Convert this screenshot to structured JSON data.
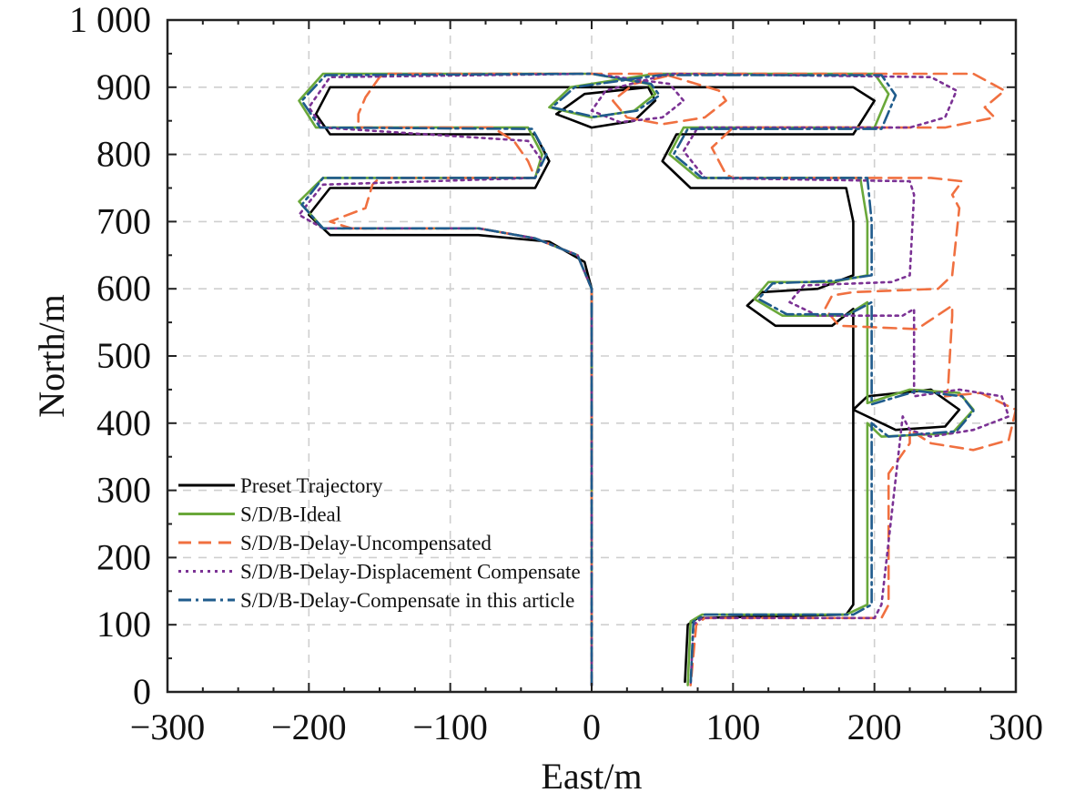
{
  "chart_data": {
    "type": "line",
    "title": "",
    "xlabel": "East/m",
    "ylabel": "North/m",
    "xlim": [
      -300,
      300
    ],
    "ylim": [
      0,
      1000
    ],
    "xticks": [
      -300,
      -200,
      -100,
      0,
      100,
      200,
      300
    ],
    "yticks": [
      0,
      100,
      200,
      300,
      400,
      500,
      600,
      700,
      800,
      900,
      1000
    ],
    "xtick_labels": [
      "−300",
      "−200",
      "−100",
      "0",
      "100",
      "200",
      "300"
    ],
    "ytick_labels": [
      "0",
      "100",
      "200",
      "300",
      "400",
      "500",
      "600",
      "700",
      "800",
      "900",
      "1 000"
    ],
    "grid": true,
    "legend_position": "lower-left",
    "series": [
      {
        "name": "Preset Trajectory",
        "color": "#000000",
        "style": "solid",
        "points": [
          [
            0,
            340
          ],
          [
            0,
            600
          ],
          [
            -5,
            640
          ],
          [
            -30,
            670
          ],
          [
            -80,
            680
          ],
          [
            -185,
            680
          ],
          [
            -200,
            710
          ],
          [
            -185,
            750
          ],
          [
            -40,
            750
          ],
          [
            -30,
            790
          ],
          [
            -40,
            830
          ],
          [
            -185,
            830
          ],
          [
            -195,
            860
          ],
          [
            -185,
            900
          ],
          [
            0,
            900
          ],
          [
            40,
            900
          ],
          [
            45,
            880
          ],
          [
            30,
            850
          ],
          [
            0,
            840
          ],
          [
            -25,
            860
          ],
          [
            -5,
            890
          ],
          [
            40,
            900
          ],
          [
            185,
            900
          ],
          [
            200,
            880
          ],
          [
            185,
            830
          ],
          [
            60,
            830
          ],
          [
            50,
            790
          ],
          [
            70,
            750
          ],
          [
            180,
            750
          ],
          [
            185,
            700
          ],
          [
            185,
            620
          ],
          [
            160,
            600
          ],
          [
            120,
            595
          ],
          [
            110,
            575
          ],
          [
            130,
            545
          ],
          [
            170,
            545
          ],
          [
            185,
            570
          ],
          [
            185,
            560
          ],
          [
            185,
            470
          ],
          [
            185,
            420
          ],
          [
            215,
            390
          ],
          [
            250,
            395
          ],
          [
            260,
            420
          ],
          [
            240,
            450
          ],
          [
            195,
            440
          ],
          [
            185,
            420
          ],
          [
            185,
            130
          ],
          [
            180,
            115
          ],
          [
            75,
            110
          ],
          [
            68,
            100
          ],
          [
            66,
            15
          ]
        ]
      },
      {
        "name": "S/D/B-Ideal",
        "color": "#6aa83a",
        "style": "solid",
        "points": [
          [
            0,
            10
          ],
          [
            0,
            600
          ],
          [
            -10,
            650
          ],
          [
            -40,
            675
          ],
          [
            -80,
            690
          ],
          [
            -190,
            690
          ],
          [
            -207,
            730
          ],
          [
            -190,
            765
          ],
          [
            -40,
            765
          ],
          [
            -35,
            800
          ],
          [
            -45,
            840
          ],
          [
            -195,
            840
          ],
          [
            -207,
            880
          ],
          [
            -190,
            920
          ],
          [
            0,
            920
          ],
          [
            40,
            905
          ],
          [
            45,
            890
          ],
          [
            30,
            865
          ],
          [
            0,
            855
          ],
          [
            -30,
            870
          ],
          [
            -15,
            900
          ],
          [
            45,
            920
          ],
          [
            200,
            920
          ],
          [
            210,
            890
          ],
          [
            200,
            840
          ],
          [
            65,
            840
          ],
          [
            55,
            800
          ],
          [
            75,
            765
          ],
          [
            190,
            765
          ],
          [
            195,
            700
          ],
          [
            195,
            620
          ],
          [
            170,
            610
          ],
          [
            125,
            610
          ],
          [
            115,
            585
          ],
          [
            135,
            560
          ],
          [
            180,
            560
          ],
          [
            195,
            580
          ],
          [
            195,
            540
          ],
          [
            195,
            460
          ],
          [
            195,
            430
          ],
          [
            225,
            450
          ],
          [
            260,
            445
          ],
          [
            270,
            420
          ],
          [
            255,
            385
          ],
          [
            205,
            380
          ],
          [
            195,
            400
          ],
          [
            195,
            130
          ],
          [
            180,
            115
          ],
          [
            78,
            115
          ],
          [
            70,
            105
          ],
          [
            68,
            10
          ]
        ]
      },
      {
        "name": "S/D/B-Delay-Uncompensated",
        "color": "#f07040",
        "style": "dashed",
        "points": [
          [
            0,
            10
          ],
          [
            0,
            600
          ],
          [
            -10,
            650
          ],
          [
            -40,
            675
          ],
          [
            -80,
            690
          ],
          [
            -170,
            690
          ],
          [
            -185,
            700
          ],
          [
            -160,
            720
          ],
          [
            -155,
            755
          ],
          [
            -150,
            765
          ],
          [
            -40,
            765
          ],
          [
            -45,
            790
          ],
          [
            -55,
            820
          ],
          [
            -70,
            840
          ],
          [
            -165,
            840
          ],
          [
            -165,
            860
          ],
          [
            -160,
            885
          ],
          [
            -150,
            915
          ],
          [
            -145,
            920
          ],
          [
            50,
            920
          ],
          [
            90,
            895
          ],
          [
            95,
            880
          ],
          [
            80,
            855
          ],
          [
            50,
            845
          ],
          [
            25,
            855
          ],
          [
            15,
            880
          ],
          [
            30,
            905
          ],
          [
            60,
            920
          ],
          [
            270,
            920
          ],
          [
            292,
            895
          ],
          [
            278,
            870
          ],
          [
            285,
            855
          ],
          [
            250,
            840
          ],
          [
            100,
            840
          ],
          [
            85,
            810
          ],
          [
            95,
            770
          ],
          [
            100,
            765
          ],
          [
            240,
            765
          ],
          [
            262,
            760
          ],
          [
            255,
            740
          ],
          [
            260,
            720
          ],
          [
            255,
            620
          ],
          [
            245,
            600
          ],
          [
            185,
            595
          ],
          [
            170,
            590
          ],
          [
            165,
            570
          ],
          [
            175,
            545
          ],
          [
            230,
            540
          ],
          [
            255,
            575
          ],
          [
            255,
            560
          ],
          [
            252,
            450
          ],
          [
            250,
            440
          ],
          [
            275,
            445
          ],
          [
            300,
            420
          ],
          [
            295,
            375
          ],
          [
            270,
            360
          ],
          [
            240,
            370
          ],
          [
            225,
            390
          ],
          [
            225,
            370
          ],
          [
            210,
            325
          ],
          [
            210,
            130
          ],
          [
            205,
            110
          ],
          [
            80,
            110
          ],
          [
            74,
            100
          ],
          [
            70,
            10
          ]
        ]
      },
      {
        "name": "S/D/B-Delay-Displacement Compensate",
        "color": "#7b3294",
        "style": "dotted",
        "points": [
          [
            0,
            10
          ],
          [
            0,
            600
          ],
          [
            -10,
            650
          ],
          [
            -40,
            675
          ],
          [
            -80,
            690
          ],
          [
            -190,
            690
          ],
          [
            -207,
            710
          ],
          [
            -190,
            755
          ],
          [
            -40,
            765
          ],
          [
            -35,
            790
          ],
          [
            -45,
            820
          ],
          [
            -190,
            840
          ],
          [
            -200,
            870
          ],
          [
            -185,
            915
          ],
          [
            0,
            920
          ],
          [
            55,
            905
          ],
          [
            65,
            880
          ],
          [
            50,
            855
          ],
          [
            20,
            848
          ],
          [
            0,
            865
          ],
          [
            10,
            895
          ],
          [
            55,
            920
          ],
          [
            240,
            915
          ],
          [
            258,
            895
          ],
          [
            250,
            855
          ],
          [
            225,
            840
          ],
          [
            75,
            840
          ],
          [
            65,
            805
          ],
          [
            80,
            765
          ],
          [
            225,
            760
          ],
          [
            228,
            740
          ],
          [
            225,
            620
          ],
          [
            212,
            610
          ],
          [
            150,
            605
          ],
          [
            140,
            580
          ],
          [
            160,
            560
          ],
          [
            220,
            560
          ],
          [
            228,
            570
          ],
          [
            228,
            470
          ],
          [
            228,
            440
          ],
          [
            260,
            450
          ],
          [
            290,
            440
          ],
          [
            295,
            410
          ],
          [
            270,
            390
          ],
          [
            240,
            380
          ],
          [
            225,
            390
          ],
          [
            220,
            410
          ],
          [
            205,
            130
          ],
          [
            200,
            110
          ],
          [
            78,
            110
          ],
          [
            72,
            100
          ],
          [
            70,
            10
          ]
        ]
      },
      {
        "name": "S/D/B-Delay-Compensate in this article",
        "color": "#1f5b8c",
        "style": "dashdot",
        "points": [
          [
            0,
            10
          ],
          [
            0,
            600
          ],
          [
            -10,
            650
          ],
          [
            -40,
            675
          ],
          [
            -80,
            690
          ],
          [
            -190,
            690
          ],
          [
            -205,
            725
          ],
          [
            -190,
            765
          ],
          [
            -40,
            765
          ],
          [
            -32,
            800
          ],
          [
            -42,
            838
          ],
          [
            -192,
            840
          ],
          [
            -205,
            880
          ],
          [
            -188,
            918
          ],
          [
            0,
            920
          ],
          [
            42,
            905
          ],
          [
            48,
            888
          ],
          [
            32,
            865
          ],
          [
            2,
            856
          ],
          [
            -28,
            870
          ],
          [
            -12,
            900
          ],
          [
            48,
            918
          ],
          [
            205,
            918
          ],
          [
            215,
            888
          ],
          [
            205,
            838
          ],
          [
            68,
            838
          ],
          [
            58,
            800
          ],
          [
            78,
            765
          ],
          [
            195,
            765
          ],
          [
            198,
            700
          ],
          [
            198,
            620
          ],
          [
            172,
            612
          ],
          [
            128,
            608
          ],
          [
            118,
            585
          ],
          [
            138,
            562
          ],
          [
            182,
            562
          ],
          [
            198,
            580
          ],
          [
            198,
            540
          ],
          [
            198,
            460
          ],
          [
            198,
            428
          ],
          [
            230,
            448
          ],
          [
            262,
            440
          ],
          [
            270,
            418
          ],
          [
            258,
            388
          ],
          [
            210,
            380
          ],
          [
            198,
            400
          ],
          [
            198,
            130
          ],
          [
            185,
            115
          ],
          [
            80,
            115
          ],
          [
            72,
            105
          ],
          [
            70,
            10
          ]
        ]
      }
    ]
  }
}
